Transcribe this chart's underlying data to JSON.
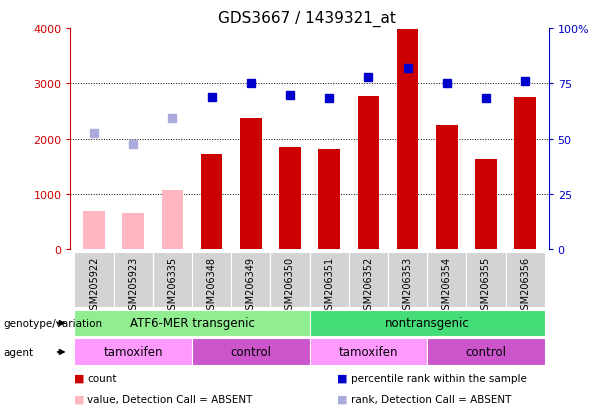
{
  "title": "GDS3667 / 1439321_at",
  "samples": [
    "GSM205922",
    "GSM205923",
    "GSM206335",
    "GSM206348",
    "GSM206349",
    "GSM206350",
    "GSM206351",
    "GSM206352",
    "GSM206353",
    "GSM206354",
    "GSM206355",
    "GSM206356"
  ],
  "bar_values": [
    700,
    650,
    1080,
    1720,
    2380,
    1850,
    1820,
    2780,
    3980,
    2250,
    1640,
    2750
  ],
  "bar_absent": [
    true,
    true,
    true,
    false,
    false,
    false,
    false,
    false,
    false,
    false,
    false,
    false
  ],
  "rank_values": [
    2100,
    1900,
    2380,
    2750,
    3010,
    2790,
    2740,
    3110,
    3280,
    3000,
    2740,
    3050
  ],
  "rank_absent": [
    true,
    true,
    true,
    false,
    false,
    false,
    false,
    false,
    false,
    false,
    false,
    false
  ],
  "ylim_left": [
    0,
    4000
  ],
  "ylim_right": [
    0,
    100
  ],
  "yticks_left": [
    0,
    1000,
    2000,
    3000,
    4000
  ],
  "ytick_labels_left": [
    "0",
    "1000",
    "2000",
    "3000",
    "4000"
  ],
  "yticks_right": [
    0,
    25,
    50,
    75,
    100
  ],
  "ytick_labels_right": [
    "0",
    "25",
    "50",
    "75",
    "100%"
  ],
  "bar_color_normal": "#CC0000",
  "bar_color_absent": "#FFB6C1",
  "rank_color_normal": "#0000CC",
  "rank_color_absent": "#AAAADD",
  "grid_yticks": [
    1000,
    2000,
    3000
  ],
  "geno_boundaries": [
    [
      0,
      5,
      "ATF6-MER transgenic",
      "#90EE90"
    ],
    [
      6,
      11,
      "nontransgenic",
      "#44DD77"
    ]
  ],
  "agent_boundaries": [
    [
      0,
      2,
      "tamoxifen",
      "#FF99FF"
    ],
    [
      3,
      5,
      "control",
      "#CC55CC"
    ],
    [
      6,
      8,
      "tamoxifen",
      "#FF99FF"
    ],
    [
      9,
      11,
      "control",
      "#CC55CC"
    ]
  ],
  "legend_items": [
    {
      "label": "count",
      "color": "#CC0000"
    },
    {
      "label": "percentile rank within the sample",
      "color": "#0000CC"
    },
    {
      "label": "value, Detection Call = ABSENT",
      "color": "#FFB6C1"
    },
    {
      "label": "rank, Detection Call = ABSENT",
      "color": "#AAAADD"
    }
  ],
  "xlabel_genotype": "genotype/variation",
  "xlabel_agent": "agent",
  "background_sample": "#D3D3D3"
}
